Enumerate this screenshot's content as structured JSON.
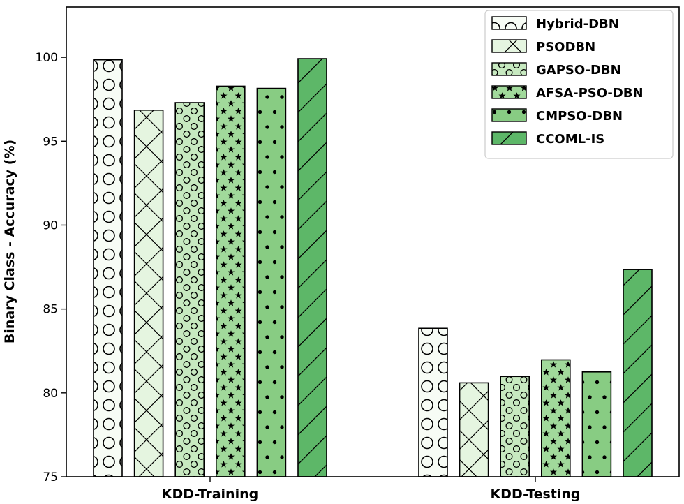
{
  "chart_data": {
    "type": "bar",
    "title": "",
    "xlabel": "",
    "ylabel": "Binary Class - Accuracy (%)",
    "ylim": [
      75,
      103
    ],
    "yticks": [
      75,
      80,
      85,
      90,
      95,
      100
    ],
    "grid": false,
    "legend_position": "top-right",
    "categories": [
      "KDD-Training",
      "KDD-Testing"
    ],
    "series": [
      {
        "name": "Hybrid-DBN",
        "values": [
          99.85,
          83.85
        ],
        "color": "#f7fcf5",
        "hatch": "circles"
      },
      {
        "name": "PSODBN",
        "values": [
          96.85,
          80.6
        ],
        "color": "#e5f5e0",
        "hatch": "cross"
      },
      {
        "name": "GAPSO-DBN",
        "values": [
          97.3,
          80.98
        ],
        "color": "#c7e9c0",
        "hatch": "small-circles"
      },
      {
        "name": "AFSA-PSO-DBN",
        "values": [
          98.28,
          81.97
        ],
        "color": "#a1d99b",
        "hatch": "stars"
      },
      {
        "name": "CMPSO-DBN",
        "values": [
          98.15,
          81.25
        ],
        "color": "#88cc83",
        "hatch": "dots"
      },
      {
        "name": "CCOML-IS",
        "values": [
          99.92,
          87.35
        ],
        "color": "#5db768",
        "hatch": "diagonal"
      }
    ]
  }
}
